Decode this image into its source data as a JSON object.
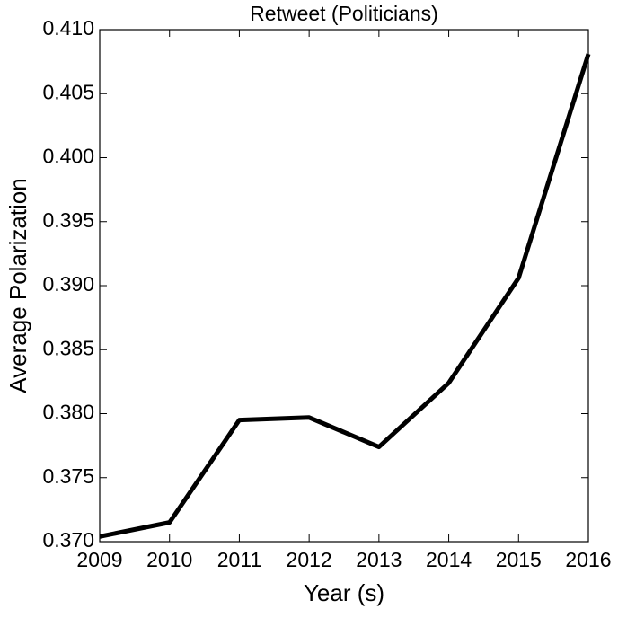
{
  "chart_data": {
    "type": "line",
    "title": "Retweet (Politicians)",
    "xlabel": "Year (s)",
    "ylabel": "Average Polarization",
    "x": [
      2009,
      2010,
      2011,
      2012,
      2013,
      2014,
      2015,
      2016
    ],
    "series": [
      {
        "color": "#000000",
        "values": [
          0.3704,
          0.3715,
          0.3795,
          0.3797,
          0.3774,
          0.3824,
          0.3906,
          0.4081
        ]
      }
    ],
    "xlim": [
      2009,
      2016
    ],
    "xticks": [
      2009,
      2010,
      2011,
      2012,
      2013,
      2014,
      2015,
      2016
    ],
    "ylim": [
      0.37,
      0.41
    ],
    "yticks": [
      {
        "value": 0.37,
        "label": "0.370"
      },
      0.375,
      {
        "value": 0.38,
        "label": "0.380"
      },
      0.385,
      {
        "value": 0.39,
        "label": "0.390"
      },
      0.395,
      {
        "value": 0.4,
        "label": "0.400"
      },
      0.405,
      {
        "value": 0.41,
        "label": "0.410"
      }
    ],
    "grid": false
  }
}
